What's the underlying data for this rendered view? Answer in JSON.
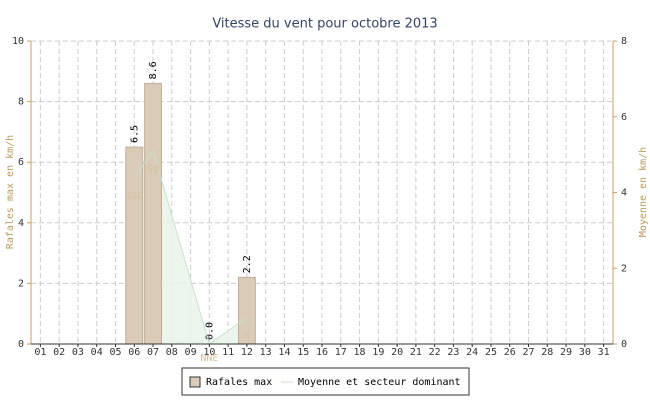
{
  "chart_data": {
    "type": "bar",
    "title": "Vitesse du vent pour octobre 2013",
    "y_label": "Rafales max en km/h",
    "y2_label": "Moyenne en km/h",
    "categories": [
      "01",
      "02",
      "03",
      "04",
      "05",
      "06",
      "07",
      "08",
      "09",
      "10",
      "11",
      "12",
      "13",
      "14",
      "15",
      "16",
      "17",
      "18",
      "19",
      "20",
      "21",
      "22",
      "23",
      "24",
      "25",
      "26",
      "27",
      "28",
      "29",
      "30",
      "31"
    ],
    "series": [
      {
        "name": "Rafales max",
        "color": "#d9cbb8",
        "values": [
          null,
          null,
          null,
          null,
          null,
          6.5,
          8.6,
          null,
          null,
          0.0,
          null,
          2.2,
          null,
          null,
          null,
          null,
          null,
          null,
          null,
          null,
          null,
          null,
          null,
          null,
          null,
          null,
          null,
          null,
          null,
          null,
          null
        ],
        "value_labels": [
          null,
          null,
          null,
          null,
          null,
          "6.5",
          "8.6",
          null,
          null,
          "0.0",
          null,
          "2.2",
          null,
          null,
          null,
          null,
          null,
          null,
          null,
          null,
          null,
          null,
          null,
          null,
          null,
          null,
          null,
          null,
          null,
          null,
          null
        ]
      },
      {
        "name": "Moyenne et secteur dominant",
        "color": "#c8e0c8",
        "axis": "y2",
        "values": [
          null,
          null,
          null,
          null,
          null,
          4.4,
          5.1,
          3.4,
          1.7,
          0.0,
          0.35,
          0.7,
          null,
          null,
          null,
          null,
          null,
          null,
          null,
          null,
          null,
          null,
          null,
          null,
          null,
          null,
          null,
          null,
          null,
          null,
          null
        ],
        "sectors": [
          null,
          null,
          null,
          null,
          null,
          "SSO",
          "SO",
          null,
          null,
          "NNE",
          null,
          "S",
          null,
          null,
          null,
          null,
          null,
          null,
          null,
          null,
          null,
          null,
          null,
          null,
          null,
          null,
          null,
          null,
          null,
          null,
          null
        ]
      }
    ],
    "ylim": [
      0,
      10
    ],
    "yticks": [
      0,
      2,
      4,
      6,
      8,
      10
    ],
    "y2lim": [
      0,
      8
    ],
    "y2ticks": [
      0,
      2,
      4,
      6,
      8
    ],
    "grid": true,
    "legend": "bottom"
  }
}
